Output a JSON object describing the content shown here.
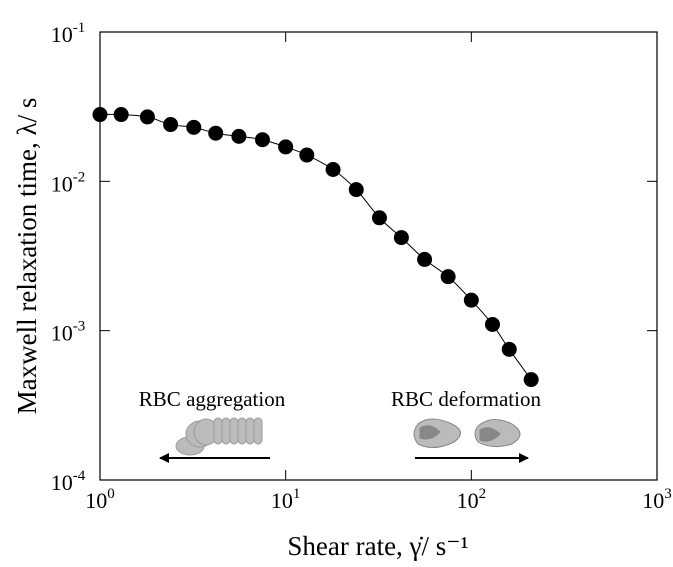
{
  "chart_data": {
    "type": "scatter",
    "x_label": "Shear rate, γ̇/ s⁻¹",
    "y_label": "Maxwell relaxation time, λ/ s",
    "annotations": [
      "RBC aggregation",
      "RBC deformation"
    ],
    "x": [
      1,
      1.3,
      1.8,
      2.4,
      3.2,
      4.2,
      5.6,
      7.5,
      10,
      13,
      18,
      24,
      32,
      42,
      56,
      75,
      100,
      130,
      160,
      210
    ],
    "values": [
      0.028,
      0.028,
      0.027,
      0.024,
      0.023,
      0.021,
      0.02,
      0.019,
      0.017,
      0.015,
      0.012,
      0.0088,
      0.0057,
      0.0042,
      0.003,
      0.0023,
      0.0016,
      0.0011,
      0.00075,
      0.00047
    ],
    "color": "#000000",
    "connect": true,
    "xlog": true,
    "ylog": true,
    "xlim": [
      1,
      1000
    ],
    "ylim": [
      0.0001,
      0.1
    ],
    "xticks": [
      {
        "value": 1,
        "label": "10",
        "exponent": "0"
      },
      {
        "value": 10,
        "label": "10",
        "exponent": "1"
      },
      {
        "value": 100,
        "label": "10",
        "exponent": "2"
      },
      {
        "value": 1000,
        "label": "10",
        "exponent": "3"
      }
    ],
    "yticks": [
      {
        "value": 0.0001,
        "label": "10",
        "exponent": "-4"
      },
      {
        "value": 0.001,
        "label": "10",
        "exponent": "-3"
      },
      {
        "value": 0.01,
        "label": "10",
        "exponent": "-2"
      },
      {
        "value": 0.1,
        "label": "10",
        "exponent": "-1"
      }
    ]
  }
}
